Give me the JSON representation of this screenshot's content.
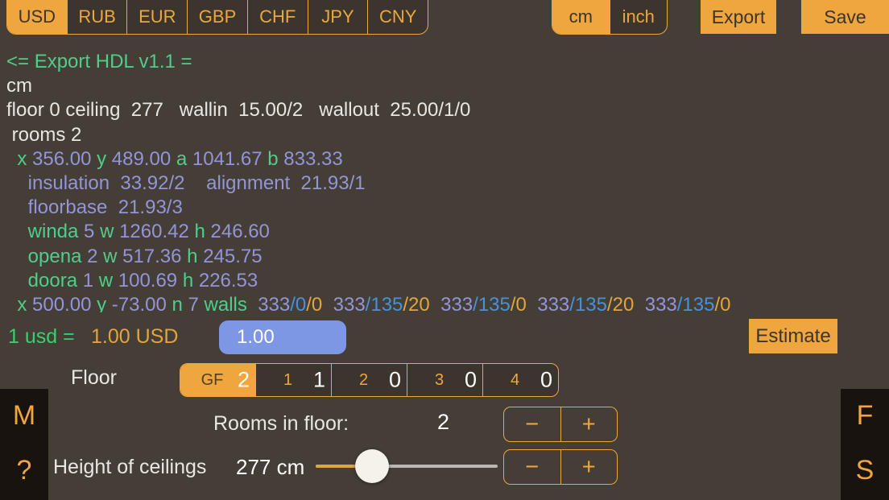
{
  "colors": {
    "bg": "#453e36",
    "seg_bg": "#3b352d",
    "accent": "#efa63e",
    "accent_text": "#3d342a",
    "strip": "#18130e",
    "white": "#e9e7e3",
    "green": "#4fcd8c",
    "rate_green": "#36d16e",
    "purple": "#9394da",
    "blue": "#4791dc",
    "orange": "#e2a43d",
    "input_bg": "#7e97e4",
    "thumb": "#f5f2ec",
    "slider_track": "#b9b7b4"
  },
  "top_bar": {
    "currencies": [
      "USD",
      "RUB",
      "EUR",
      "GBP",
      "CHF",
      "JPY",
      "CNY"
    ],
    "selected_currency": "USD",
    "units": [
      "cm",
      "inch"
    ],
    "selected_unit": "cm",
    "export_label": "Export",
    "save_label": "Save"
  },
  "console": {
    "lines": [
      [
        {
          "t": "<= Export HDL v1.1 =",
          "c": "green"
        }
      ],
      [
        {
          "t": "cm",
          "c": "white"
        }
      ],
      [
        {
          "t": "floor 0 ceiling  277   wallin  15.00/2   wallout  25.00/1/0",
          "c": "white"
        }
      ],
      [
        {
          "t": " rooms 2",
          "c": "white"
        }
      ],
      [
        {
          "t": "  x ",
          "c": "green"
        },
        {
          "t": "356.00 ",
          "c": "purple"
        },
        {
          "t": "y ",
          "c": "green"
        },
        {
          "t": "489.00 ",
          "c": "purple"
        },
        {
          "t": "a ",
          "c": "green"
        },
        {
          "t": "1041.67 ",
          "c": "purple"
        },
        {
          "t": "b ",
          "c": "green"
        },
        {
          "t": "833.33",
          "c": "purple"
        }
      ],
      [
        {
          "t": "    insulation  33.92/2    alignment  21.93/1",
          "c": "purple"
        }
      ],
      [
        {
          "t": "    floorbase  21.93/3",
          "c": "purple"
        }
      ],
      [
        {
          "t": "    winda ",
          "c": "green"
        },
        {
          "t": "5 ",
          "c": "purple"
        },
        {
          "t": "w ",
          "c": "green"
        },
        {
          "t": "1260.42 ",
          "c": "purple"
        },
        {
          "t": "h ",
          "c": "green"
        },
        {
          "t": "246.60",
          "c": "purple"
        }
      ],
      [
        {
          "t": "    opena ",
          "c": "green"
        },
        {
          "t": "2 ",
          "c": "purple"
        },
        {
          "t": "w ",
          "c": "green"
        },
        {
          "t": "517.36 ",
          "c": "purple"
        },
        {
          "t": "h ",
          "c": "green"
        },
        {
          "t": "245.75",
          "c": "purple"
        }
      ],
      [
        {
          "t": "    doora ",
          "c": "green"
        },
        {
          "t": "1 ",
          "c": "purple"
        },
        {
          "t": "w ",
          "c": "green"
        },
        {
          "t": "100.69 ",
          "c": "purple"
        },
        {
          "t": "h ",
          "c": "green"
        },
        {
          "t": "226.53",
          "c": "purple"
        }
      ],
      [
        {
          "t": "  x ",
          "c": "green"
        },
        {
          "t": "500.00 ",
          "c": "purple"
        },
        {
          "t": "y ",
          "c": "green"
        },
        {
          "t": "-73.00 ",
          "c": "purple"
        },
        {
          "t": "n ",
          "c": "green"
        },
        {
          "t": "7 ",
          "c": "purple"
        },
        {
          "t": "walls  ",
          "c": "green"
        },
        {
          "t": "333",
          "c": "purple"
        },
        {
          "t": "/0",
          "c": "blue"
        },
        {
          "t": "/0",
          "c": "orange"
        },
        {
          "t": "  ",
          "c": "white"
        },
        {
          "t": "333",
          "c": "purple"
        },
        {
          "t": "/135",
          "c": "blue"
        },
        {
          "t": "/20",
          "c": "orange"
        },
        {
          "t": "  ",
          "c": "white"
        },
        {
          "t": "333",
          "c": "purple"
        },
        {
          "t": "/135",
          "c": "blue"
        },
        {
          "t": "/0",
          "c": "orange"
        },
        {
          "t": "  ",
          "c": "white"
        },
        {
          "t": "333",
          "c": "purple"
        },
        {
          "t": "/135",
          "c": "blue"
        },
        {
          "t": "/20",
          "c": "orange"
        },
        {
          "t": "  ",
          "c": "white"
        },
        {
          "t": "333",
          "c": "purple"
        },
        {
          "t": "/135",
          "c": "blue"
        },
        {
          "t": "/0",
          "c": "orange"
        }
      ]
    ]
  },
  "rate_row": {
    "label_left": "1 usd =",
    "value_label": "1.00 USD",
    "input_value": "1.00",
    "estimate_label": "Estimate"
  },
  "floor_row": {
    "label": "Floor",
    "segments": [
      {
        "name": "GF",
        "count": "2",
        "selected": true
      },
      {
        "name": "1",
        "count": "1",
        "selected": false
      },
      {
        "name": "2",
        "count": "0",
        "selected": false
      },
      {
        "name": "3",
        "count": "0",
        "selected": false
      },
      {
        "name": "4",
        "count": "0",
        "selected": false
      }
    ]
  },
  "rooms_row": {
    "label": "Rooms in floor:",
    "value": "2",
    "minus": "−",
    "plus": "+"
  },
  "height_row": {
    "label": "Height of ceilings",
    "value": "277 cm",
    "slider_percent": 31,
    "minus": "−",
    "plus": "+"
  },
  "side_buttons": {
    "left": [
      {
        "label": "M",
        "name": "side-button-m"
      },
      {
        "label": "?",
        "name": "side-button-help"
      }
    ],
    "right": [
      {
        "label": "F",
        "name": "side-button-f"
      },
      {
        "label": "S",
        "name": "side-button-s"
      }
    ]
  }
}
